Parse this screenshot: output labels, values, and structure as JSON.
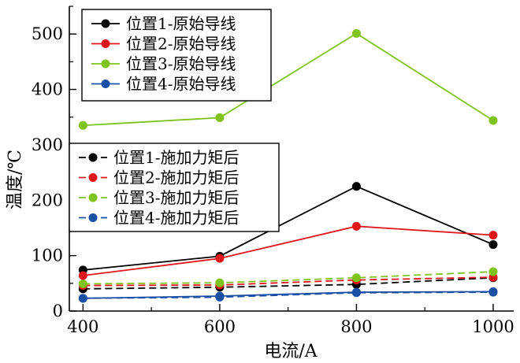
{
  "chart_data": {
    "type": "line",
    "xlabel": "电流/A",
    "ylabel": "温度/℃",
    "x": [
      400,
      600,
      800,
      1000
    ],
    "xlim": [
      380,
      1030
    ],
    "ylim": [
      0,
      550
    ],
    "xticks": [
      400,
      600,
      800,
      1000
    ],
    "yticks": [
      0,
      100,
      200,
      300,
      400,
      500
    ],
    "grid": false,
    "series": [
      {
        "name": "位置1-原始导线",
        "values": [
          74,
          99,
          225,
          120
        ],
        "color": "#000000",
        "dash": "solid",
        "legend": 0
      },
      {
        "name": "位置2-原始导线",
        "values": [
          64,
          95,
          153,
          137
        ],
        "color": "#e0161b",
        "dash": "solid",
        "legend": 0
      },
      {
        "name": "位置3-原始导线",
        "values": [
          335,
          349,
          501,
          344
        ],
        "color": "#7ec31e",
        "dash": "solid",
        "legend": 0
      },
      {
        "name": "位置4-原始导线",
        "values": [
          23,
          27,
          34,
          35
        ],
        "color": "#1a4fa6",
        "dash": "solid",
        "legend": 0
      },
      {
        "name": "位置1-施加力矩后",
        "values": [
          40,
          43,
          48,
          60
        ],
        "color": "#000000",
        "dash": "dashed",
        "legend": 1
      },
      {
        "name": "位置2-施加力矩后",
        "values": [
          46,
          47,
          56,
          61
        ],
        "color": "#e0161b",
        "dash": "dashed",
        "legend": 1
      },
      {
        "name": "位置3-施加力矩后",
        "values": [
          49,
          51,
          60,
          71
        ],
        "color": "#7ec31e",
        "dash": "dashed",
        "legend": 1
      },
      {
        "name": "位置4-施加力矩后",
        "values": [
          23,
          25,
          33,
          34
        ],
        "color": "#1a4fa6",
        "dash": "dashed",
        "legend": 1
      }
    ]
  }
}
